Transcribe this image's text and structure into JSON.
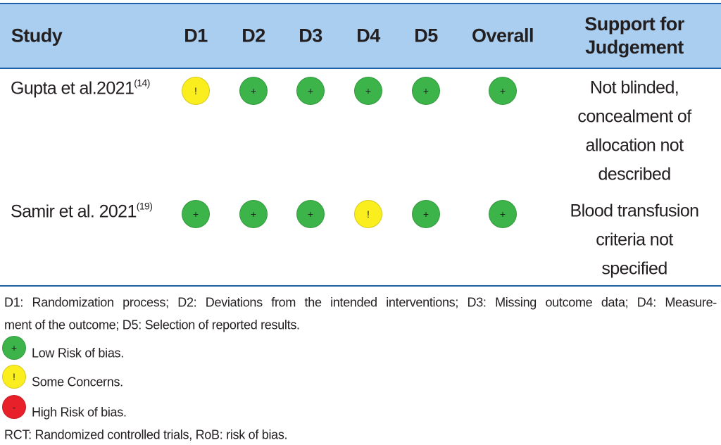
{
  "table": {
    "header": [
      "Study",
      "D1",
      "D2",
      "D3",
      "D4",
      "D5",
      "Overall",
      "Support for Judgement"
    ],
    "rows": [
      {
        "study": "Gupta et al.2021",
        "ref": "(14)",
        "cells": [
          "!",
          "+",
          "+",
          "+",
          "+",
          "+"
        ],
        "support": [
          "Not blinded,",
          "concealment of",
          "allocation not",
          "described"
        ]
      },
      {
        "study": "Samir et al. 2021",
        "ref": "(19)",
        "cells": [
          "+",
          "+",
          "+",
          "!",
          "+",
          "+"
        ],
        "support": [
          "Blood transfusion",
          "criteria not",
          "specified"
        ]
      }
    ]
  },
  "footnote": [
    "D1: Randomization process; D2: Deviations from the intended interventions; D3: Missing outcome data; D4: Measure-",
    "ment of the outcome; D5: Selection of reported results."
  ],
  "legend": [
    {
      "symbol": "+",
      "label": "Low Risk of bias.",
      "color": "#3cb449"
    },
    {
      "symbol": "!",
      "label": "Some Concerns.",
      "color": "#fbee1f"
    },
    {
      "symbol": "-",
      "label": "High Risk of bias.",
      "color": "#e8202a"
    }
  ],
  "abbreviations": "RCT: Randomized controlled trials, RoB: risk of bias."
}
